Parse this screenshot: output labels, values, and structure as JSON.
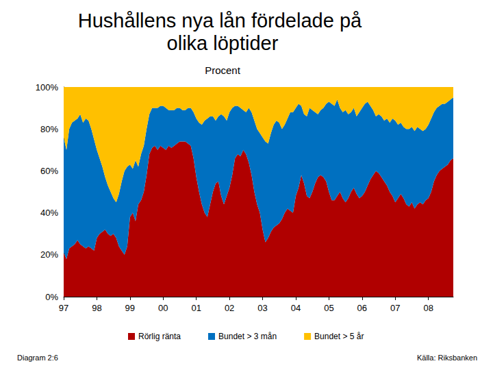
{
  "chart_data": {
    "type": "area",
    "title": "Hushållens nya lån fördelade på olika löptider",
    "subtitle": "Procent",
    "annotations": [
      "Diagram 2:6",
      "Källa: Riksbanken"
    ],
    "stacked": true,
    "grid": false,
    "legend": "bottom",
    "categories": [
      "97",
      null,
      null,
      null,
      null,
      null,
      null,
      null,
      null,
      null,
      null,
      null,
      "98",
      null,
      null,
      null,
      null,
      null,
      null,
      null,
      null,
      null,
      null,
      null,
      "99",
      null,
      null,
      null,
      null,
      null,
      null,
      null,
      null,
      null,
      null,
      null,
      "00",
      null,
      null,
      null,
      null,
      null,
      null,
      null,
      null,
      null,
      null,
      null,
      "01",
      null,
      null,
      null,
      null,
      null,
      null,
      null,
      null,
      null,
      null,
      null,
      "02",
      null,
      null,
      null,
      null,
      null,
      null,
      null,
      null,
      null,
      null,
      null,
      "03",
      null,
      null,
      null,
      null,
      null,
      null,
      null,
      null,
      null,
      null,
      null,
      "04",
      null,
      null,
      null,
      null,
      null,
      null,
      null,
      null,
      null,
      null,
      null,
      "05",
      null,
      null,
      null,
      null,
      null,
      null,
      null,
      null,
      null,
      null,
      null,
      "06",
      null,
      null,
      null,
      null,
      null,
      null,
      null,
      null,
      null,
      null,
      null,
      "07",
      null,
      null,
      null,
      null,
      null,
      null,
      null,
      null,
      null,
      null,
      null,
      "08",
      null,
      null,
      null,
      null,
      null,
      null,
      null,
      null,
      null
    ],
    "ylim": [
      0,
      100
    ],
    "yticks": [
      {
        "value": 0,
        "label": "0%"
      },
      {
        "value": 20,
        "label": "20%"
      },
      {
        "value": 40,
        "label": "40%"
      },
      {
        "value": 60,
        "label": "60%"
      },
      {
        "value": 80,
        "label": "80%"
      },
      {
        "value": 100,
        "label": "100%"
      }
    ],
    "series": [
      {
        "name": "Rörlig ränta",
        "color": "#B00000",
        "values": [
          21,
          18,
          23,
          24,
          25,
          27,
          25,
          24,
          23,
          24,
          23,
          22,
          28,
          30,
          31,
          32,
          30,
          29,
          30,
          28,
          24,
          22,
          20,
          24,
          38,
          40,
          36,
          44,
          46,
          50,
          58,
          68,
          71,
          72,
          70,
          72,
          71,
          70,
          72,
          71,
          72,
          73,
          74,
          74,
          74,
          73,
          72,
          66,
          57,
          50,
          44,
          40,
          38,
          44,
          50,
          54,
          55,
          48,
          44,
          48,
          52,
          58,
          66,
          68,
          67,
          70,
          68,
          64,
          58,
          50,
          44,
          40,
          32,
          26,
          28,
          31,
          33,
          34,
          35,
          37,
          40,
          42,
          41,
          40,
          48,
          52,
          58,
          54,
          48,
          47,
          50,
          54,
          57,
          58,
          57,
          55,
          50,
          46,
          46,
          48,
          50,
          47,
          45,
          47,
          50,
          52,
          49,
          47,
          48,
          50,
          53,
          56,
          58,
          60,
          59,
          57,
          55,
          53,
          50,
          48,
          45,
          47,
          49,
          47,
          44,
          43,
          45,
          42,
          44,
          45,
          44,
          46,
          47,
          50,
          55,
          58,
          60,
          61,
          62,
          63,
          65,
          66
        ]
      },
      {
        "name": "Bundet > 3 mån",
        "color": "#0070C0",
        "values": [
          55,
          52,
          57,
          59,
          59,
          58,
          62,
          59,
          62,
          60,
          57,
          53,
          42,
          36,
          31,
          25,
          23,
          21,
          17,
          17,
          25,
          33,
          40,
          38,
          25,
          21,
          29,
          18,
          22,
          22,
          22,
          19,
          19,
          18,
          20,
          19,
          20,
          20,
          17,
          18,
          17,
          17,
          16,
          15,
          15,
          17,
          18,
          22,
          28,
          33,
          38,
          44,
          47,
          42,
          36,
          30,
          31,
          39,
          42,
          36,
          36,
          32,
          25,
          23,
          23,
          19,
          20,
          26,
          30,
          34,
          36,
          38,
          44,
          48,
          45,
          47,
          49,
          50,
          48,
          43,
          42,
          43,
          47,
          48,
          42,
          40,
          33,
          33,
          38,
          43,
          39,
          34,
          30,
          31,
          33,
          37,
          43,
          46,
          45,
          46,
          40,
          41,
          44,
          40,
          38,
          38,
          37,
          41,
          42,
          42,
          40,
          35,
          31,
          26,
          28,
          29,
          29,
          32,
          33,
          37,
          39,
          35,
          34,
          34,
          36,
          37,
          36,
          37,
          37,
          35,
          35,
          34,
          35,
          35,
          33,
          32,
          31,
          31,
          30,
          30,
          29,
          29
        ]
      },
      {
        "name": "Bundet > 5 år",
        "color": "#FFC000",
        "values": [
          24,
          30,
          20,
          17,
          16,
          15,
          13,
          17,
          15,
          16,
          20,
          25,
          30,
          34,
          38,
          43,
          47,
          50,
          53,
          55,
          51,
          45,
          40,
          38,
          37,
          39,
          35,
          38,
          32,
          28,
          20,
          13,
          10,
          10,
          10,
          9,
          9,
          10,
          11,
          11,
          11,
          10,
          10,
          11,
          11,
          10,
          10,
          12,
          15,
          17,
          18,
          16,
          15,
          14,
          14,
          16,
          14,
          13,
          14,
          16,
          12,
          10,
          9,
          9,
          10,
          11,
          12,
          10,
          12,
          16,
          20,
          22,
          24,
          26,
          27,
          22,
          18,
          16,
          17,
          20,
          18,
          15,
          12,
          12,
          10,
          8,
          9,
          13,
          14,
          10,
          11,
          12,
          13,
          11,
          10,
          8,
          7,
          8,
          9,
          6,
          10,
          12,
          11,
          13,
          12,
          10,
          14,
          12,
          10,
          8,
          7,
          9,
          11,
          14,
          13,
          14,
          16,
          15,
          17,
          15,
          16,
          18,
          17,
          19,
          20,
          20,
          19,
          21,
          19,
          20,
          21,
          20,
          18,
          15,
          12,
          10,
          9,
          8,
          8,
          7,
          6,
          5
        ]
      }
    ]
  }
}
